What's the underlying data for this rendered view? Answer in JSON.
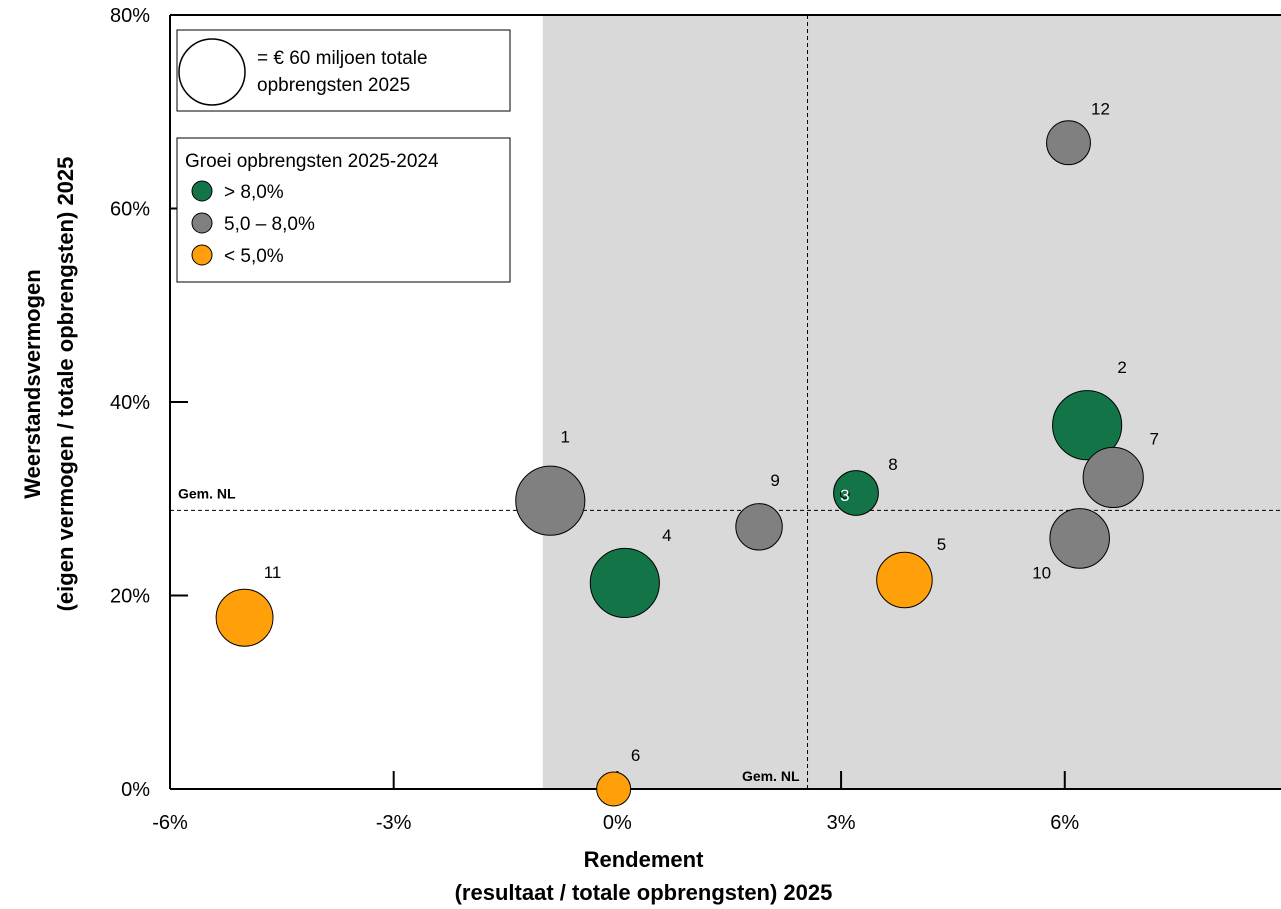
{
  "chart_data": {
    "type": "scatter",
    "xlabel": [
      "Rendement",
      "(resultaat / totale opbrengsten) 2025"
    ],
    "ylabel": [
      "Weerstandsvermogen",
      "(eigen vermogen / totale opbrengsten) 2025"
    ],
    "xlim": [
      -6,
      8.9
    ],
    "ylim": [
      0,
      80
    ],
    "x_ticks": [
      {
        "value": -6,
        "label": "-6%"
      },
      {
        "value": -3,
        "label": "-3%"
      },
      {
        "value": 0,
        "label": "0%"
      },
      {
        "value": 3,
        "label": "3%"
      },
      {
        "value": 6,
        "label": "6%"
      }
    ],
    "y_ticks": [
      {
        "value": 0,
        "label": "0%"
      },
      {
        "value": 20,
        "label": "20%"
      },
      {
        "value": 40,
        "label": "40%"
      },
      {
        "value": 60,
        "label": "60%"
      },
      {
        "value": 80,
        "label": "80%"
      }
    ],
    "shaded_region": {
      "x_from": -1.0,
      "x_to": 8.9,
      "color": "#d9d9d9"
    },
    "reference_lines": [
      {
        "axis": "x",
        "value": 2.55,
        "label": "Gem. NL"
      },
      {
        "axis": "y",
        "value": 28.8,
        "label": "Gem. NL"
      }
    ],
    "size_legend": {
      "revenue": 60,
      "text": [
        "= € 60 miljoen totale",
        "opbrengsten 2025"
      ]
    },
    "color_legend": {
      "title": "Groei opbrengsten 2025-2024",
      "entries": [
        {
          "label": "> 8,0%",
          "color": "#137547"
        },
        {
          "label": "5,0 – 8,0%",
          "color": "#808080"
        },
        {
          "label": "< 5,0%",
          "color": "#ff9f0a"
        }
      ]
    },
    "points": [
      {
        "id": "1",
        "x": -0.9,
        "y": 29.8,
        "size": 62,
        "group": 1
      },
      {
        "id": "2",
        "x": 6.3,
        "y": 37.6,
        "size": 62,
        "group": 0
      },
      {
        "id": "3",
        "x": 3.05,
        "y": 30.5,
        "size": 1,
        "group": 0
      },
      {
        "id": "4",
        "x": 0.1,
        "y": 21.3,
        "size": 62,
        "group": 0
      },
      {
        "id": "5",
        "x": 3.85,
        "y": 21.6,
        "size": 40,
        "group": 2
      },
      {
        "id": "6",
        "x": -0.05,
        "y": 0,
        "size": 15,
        "group": 2
      },
      {
        "id": "7",
        "x": 6.65,
        "y": 32.2,
        "size": 47,
        "group": 1
      },
      {
        "id": "8",
        "x": 3.2,
        "y": 30.6,
        "size": 26,
        "group": 0
      },
      {
        "id": "9",
        "x": 1.9,
        "y": 27.1,
        "size": 28,
        "group": 1
      },
      {
        "id": "10",
        "x": 6.2,
        "y": 25.9,
        "size": 46,
        "group": 1
      },
      {
        "id": "11",
        "x": -5.0,
        "y": 17.7,
        "size": 42,
        "group": 2
      },
      {
        "id": "12",
        "x": 6.05,
        "y": 66.8,
        "size": 25,
        "group": 1
      }
    ]
  }
}
